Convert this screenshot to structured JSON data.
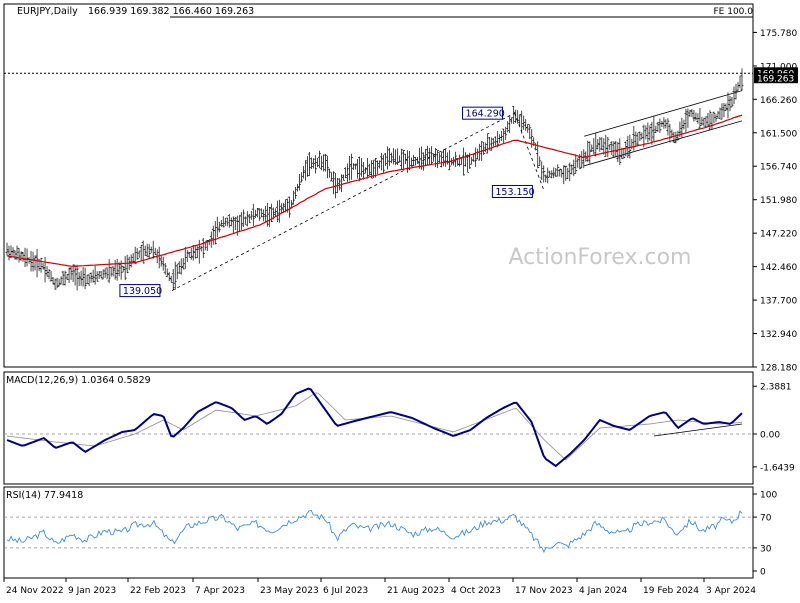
{
  "chart_data": {
    "type": "candlestick",
    "header": {
      "symbol": "EURJPY,Daily",
      "ohlc": "166.939 169.382 166.460 169.263",
      "fe_label": "FE 100.0"
    },
    "watermark": "ActionForex.com",
    "x_tick_labels": [
      "24 Nov 2022",
      "9 Jan 2023",
      "22 Feb 2023",
      "7 Apr 2023",
      "23 May 2023",
      "6 Jul 2023",
      "21 Aug 2023",
      "4 Oct 2023",
      "17 Nov 2023",
      "4 Jan 2024",
      "19 Feb 2024",
      "3 Apr 2024"
    ],
    "price": {
      "ylim": [
        128.18,
        179.82
      ],
      "y_tick_labels": [
        "175.780",
        "171.000",
        "166.260",
        "161.500",
        "156.740",
        "151.980",
        "147.220",
        "142.460",
        "137.700",
        "132.940",
        "128.180"
      ],
      "current": {
        "value": 169.263,
        "label": "169.263"
      },
      "level_line": {
        "value": 169.96,
        "label": "169.960"
      },
      "annotations": [
        {
          "label": "164.290",
          "value": 164.29,
          "date": "2023-11-16"
        },
        {
          "label": "153.150",
          "value": 153.15,
          "date": "2023-12-07"
        },
        {
          "label": "139.050",
          "value": 139.05,
          "date": "2023-03-20"
        }
      ],
      "trend_points": [
        [
          "2022-11-24",
          144.8
        ],
        [
          "2022-12-05",
          143.8
        ],
        [
          "2022-12-20",
          142.5
        ],
        [
          "2022-12-28",
          140.0
        ],
        [
          "2023-01-09",
          141.5
        ],
        [
          "2023-01-18",
          140.5
        ],
        [
          "2023-02-01",
          141.5
        ],
        [
          "2023-02-13",
          142.0
        ],
        [
          "2023-02-22",
          144.0
        ],
        [
          "2023-03-07",
          145.0
        ],
        [
          "2023-03-20",
          140.5
        ],
        [
          "2023-03-31",
          144.0
        ],
        [
          "2023-04-14",
          145.5
        ],
        [
          "2023-04-25",
          149.0
        ],
        [
          "2023-05-05",
          148.5
        ],
        [
          "2023-05-18",
          150.0
        ],
        [
          "2023-05-29",
          149.8
        ],
        [
          "2023-06-12",
          151.5
        ],
        [
          "2023-06-23",
          157.0
        ],
        [
          "2023-07-05",
          157.5
        ],
        [
          "2023-07-14",
          153.5
        ],
        [
          "2023-07-24",
          157.0
        ],
        [
          "2023-08-04",
          156.0
        ],
        [
          "2023-08-21",
          158.0
        ],
        [
          "2023-09-05",
          157.5
        ],
        [
          "2023-09-20",
          158.0
        ],
        [
          "2023-10-04",
          157.5
        ],
        [
          "2023-10-16",
          157.5
        ],
        [
          "2023-10-27",
          159.5
        ],
        [
          "2023-11-08",
          161.0
        ],
        [
          "2023-11-16",
          164.0
        ],
        [
          "2023-11-24",
          162.5
        ],
        [
          "2023-12-01",
          159.5
        ],
        [
          "2023-12-07",
          155.0
        ],
        [
          "2023-12-15",
          156.0
        ],
        [
          "2023-12-22",
          155.5
        ],
        [
          "2024-01-04",
          158.0
        ],
        [
          "2024-01-12",
          160.0
        ],
        [
          "2024-01-22",
          159.5
        ],
        [
          "2024-02-01",
          158.5
        ],
        [
          "2024-02-08",
          160.5
        ],
        [
          "2024-02-19",
          161.5
        ],
        [
          "2024-03-01",
          163.0
        ],
        [
          "2024-03-08",
          160.5
        ],
        [
          "2024-03-19",
          164.5
        ],
        [
          "2024-03-27",
          163.0
        ],
        [
          "2024-04-05",
          163.5
        ],
        [
          "2024-04-10",
          164.5
        ],
        [
          "2024-04-17",
          166.0
        ],
        [
          "2024-04-24",
          169.3
        ]
      ],
      "ma_points": [
        [
          "2022-11-24",
          144.0
        ],
        [
          "2023-01-09",
          142.5
        ],
        [
          "2023-02-22",
          143.0
        ],
        [
          "2023-04-07",
          145.5
        ],
        [
          "2023-05-23",
          148.5
        ],
        [
          "2023-07-06",
          153.5
        ],
        [
          "2023-08-21",
          156.0
        ],
        [
          "2023-10-04",
          157.5
        ],
        [
          "2023-11-17",
          160.5
        ],
        [
          "2024-01-04",
          158.0
        ],
        [
          "2024-02-19",
          160.0
        ],
        [
          "2024-04-03",
          162.5
        ],
        [
          "2024-04-24",
          164.0
        ]
      ],
      "channel_upper": [
        [
          "2024-01-04",
          161.0
        ],
        [
          "2024-04-24",
          167.5
        ]
      ],
      "channel_lower": [
        [
          "2024-01-04",
          156.8
        ],
        [
          "2024-04-24",
          163.2
        ]
      ],
      "support_line": [
        [
          "2023-03-20",
          139.05
        ],
        [
          "2023-11-16",
          164.29
        ]
      ],
      "retrace_line": [
        [
          "2023-11-16",
          164.29
        ],
        [
          "2023-12-07",
          153.15
        ]
      ],
      "fe_line": [
        [
          "2024-03-01",
          169.96
        ],
        [
          "2024-04-24",
          169.96
        ]
      ]
    },
    "macd": {
      "label": "MACD(12,26,9) 1.0364 0.5829",
      "ylim": [
        -2.2,
        2.8
      ],
      "y_tick_labels": [
        "2.3881",
        "0.00",
        "-1.6439"
      ],
      "y_tick_values": [
        2.3881,
        0.0,
        -1.6439
      ],
      "macd_points": [
        [
          "2022-11-24",
          -0.3
        ],
        [
          "2022-12-05",
          -0.6
        ],
        [
          "2022-12-20",
          -0.2
        ],
        [
          "2022-12-28",
          -0.7
        ],
        [
          "2023-01-09",
          -0.4
        ],
        [
          "2023-01-18",
          -0.9
        ],
        [
          "2023-01-25",
          -0.6
        ],
        [
          "2023-02-01",
          -0.3
        ],
        [
          "2023-02-13",
          0.1
        ],
        [
          "2023-02-22",
          0.2
        ],
        [
          "2023-03-07",
          1.0
        ],
        [
          "2023-03-14",
          0.9
        ],
        [
          "2023-03-20",
          -0.2
        ],
        [
          "2023-03-28",
          0.3
        ],
        [
          "2023-04-07",
          1.1
        ],
        [
          "2023-04-20",
          1.6
        ],
        [
          "2023-05-01",
          1.3
        ],
        [
          "2023-05-10",
          0.7
        ],
        [
          "2023-05-18",
          0.9
        ],
        [
          "2023-05-26",
          0.5
        ],
        [
          "2023-06-05",
          1.0
        ],
        [
          "2023-06-15",
          2.0
        ],
        [
          "2023-06-25",
          2.3
        ],
        [
          "2023-07-06",
          1.2
        ],
        [
          "2023-07-14",
          0.4
        ],
        [
          "2023-07-24",
          0.6
        ],
        [
          "2023-08-04",
          0.8
        ],
        [
          "2023-08-21",
          1.1
        ],
        [
          "2023-09-05",
          0.8
        ],
        [
          "2023-09-20",
          0.3
        ],
        [
          "2023-10-04",
          -0.1
        ],
        [
          "2023-10-16",
          0.2
        ],
        [
          "2023-10-27",
          0.8
        ],
        [
          "2023-11-08",
          1.3
        ],
        [
          "2023-11-17",
          1.6
        ],
        [
          "2023-11-28",
          0.6
        ],
        [
          "2023-12-07",
          -1.2
        ],
        [
          "2023-12-15",
          -1.6
        ],
        [
          "2023-12-25",
          -1.0
        ],
        [
          "2024-01-04",
          -0.3
        ],
        [
          "2024-01-15",
          0.7
        ],
        [
          "2024-01-25",
          0.4
        ],
        [
          "2024-02-05",
          0.2
        ],
        [
          "2024-02-19",
          0.9
        ],
        [
          "2024-03-01",
          1.1
        ],
        [
          "2024-03-10",
          0.3
        ],
        [
          "2024-03-20",
          0.8
        ],
        [
          "2024-03-28",
          0.5
        ],
        [
          "2024-04-08",
          0.6
        ],
        [
          "2024-04-16",
          0.5
        ],
        [
          "2024-04-24",
          1.04
        ]
      ],
      "signal_points": [
        [
          "2022-11-24",
          -0.1
        ],
        [
          "2022-12-28",
          -0.4
        ],
        [
          "2023-01-25",
          -0.6
        ],
        [
          "2023-02-22",
          0.0
        ],
        [
          "2023-03-14",
          0.7
        ],
        [
          "2023-03-28",
          0.2
        ],
        [
          "2023-04-20",
          1.2
        ],
        [
          "2023-05-18",
          0.9
        ],
        [
          "2023-06-15",
          1.4
        ],
        [
          "2023-06-30",
          2.1
        ],
        [
          "2023-07-20",
          0.7
        ],
        [
          "2023-08-21",
          0.9
        ],
        [
          "2023-10-04",
          0.1
        ],
        [
          "2023-11-17",
          1.3
        ],
        [
          "2023-12-07",
          -0.3
        ],
        [
          "2023-12-22",
          -1.3
        ],
        [
          "2024-01-15",
          0.3
        ],
        [
          "2024-02-19",
          0.5
        ],
        [
          "2024-03-10",
          0.7
        ],
        [
          "2024-04-08",
          0.5
        ],
        [
          "2024-04-24",
          0.58
        ]
      ],
      "trend_line": [
        [
          "2024-02-22",
          -0.1
        ],
        [
          "2024-04-24",
          0.5
        ]
      ]
    },
    "rsi": {
      "label": "RSI(14) 77.9418",
      "ylim": [
        0,
        100
      ],
      "y_tick_labels": [
        "100",
        "70",
        "30",
        "0"
      ],
      "y_tick_values": [
        100,
        70,
        30,
        0
      ],
      "points": [
        [
          "2022-11-24",
          42
        ],
        [
          "2022-12-05",
          38
        ],
        [
          "2022-12-20",
          50
        ],
        [
          "2022-12-28",
          35
        ],
        [
          "2023-01-09",
          48
        ],
        [
          "2023-01-18",
          40
        ],
        [
          "2023-02-01",
          52
        ],
        [
          "2023-02-13",
          50
        ],
        [
          "2023-02-22",
          60
        ],
        [
          "2023-03-07",
          62
        ],
        [
          "2023-03-20",
          36
        ],
        [
          "2023-03-31",
          58
        ],
        [
          "2023-04-14",
          66
        ],
        [
          "2023-04-25",
          70
        ],
        [
          "2023-05-05",
          55
        ],
        [
          "2023-05-18",
          62
        ],
        [
          "2023-05-29",
          52
        ],
        [
          "2023-06-12",
          66
        ],
        [
          "2023-06-25",
          76
        ],
        [
          "2023-07-06",
          68
        ],
        [
          "2023-07-14",
          42
        ],
        [
          "2023-07-24",
          60
        ],
        [
          "2023-08-04",
          54
        ],
        [
          "2023-08-21",
          62
        ],
        [
          "2023-09-05",
          48
        ],
        [
          "2023-09-20",
          56
        ],
        [
          "2023-10-04",
          45
        ],
        [
          "2023-10-16",
          52
        ],
        [
          "2023-10-27",
          64
        ],
        [
          "2023-11-08",
          66
        ],
        [
          "2023-11-16",
          72
        ],
        [
          "2023-11-24",
          55
        ],
        [
          "2023-12-01",
          40
        ],
        [
          "2023-12-07",
          26
        ],
        [
          "2023-12-15",
          38
        ],
        [
          "2023-12-22",
          32
        ],
        [
          "2024-01-04",
          48
        ],
        [
          "2024-01-12",
          62
        ],
        [
          "2024-01-22",
          52
        ],
        [
          "2024-02-01",
          48
        ],
        [
          "2024-02-08",
          58
        ],
        [
          "2024-02-19",
          64
        ],
        [
          "2024-03-01",
          66
        ],
        [
          "2024-03-08",
          48
        ],
        [
          "2024-03-19",
          65
        ],
        [
          "2024-03-27",
          52
        ],
        [
          "2024-04-05",
          58
        ],
        [
          "2024-04-10",
          66
        ],
        [
          "2024-04-17",
          64
        ],
        [
          "2024-04-24",
          77.94
        ]
      ]
    },
    "colors": {
      "candle": "#1a1a1a",
      "ma": "#cc0000",
      "macd": "#000080",
      "signal": "#999999",
      "rsi": "#3b8fd6",
      "label_text": "#000080",
      "grid": "#888888",
      "watermark": "#c8c8c8"
    }
  }
}
